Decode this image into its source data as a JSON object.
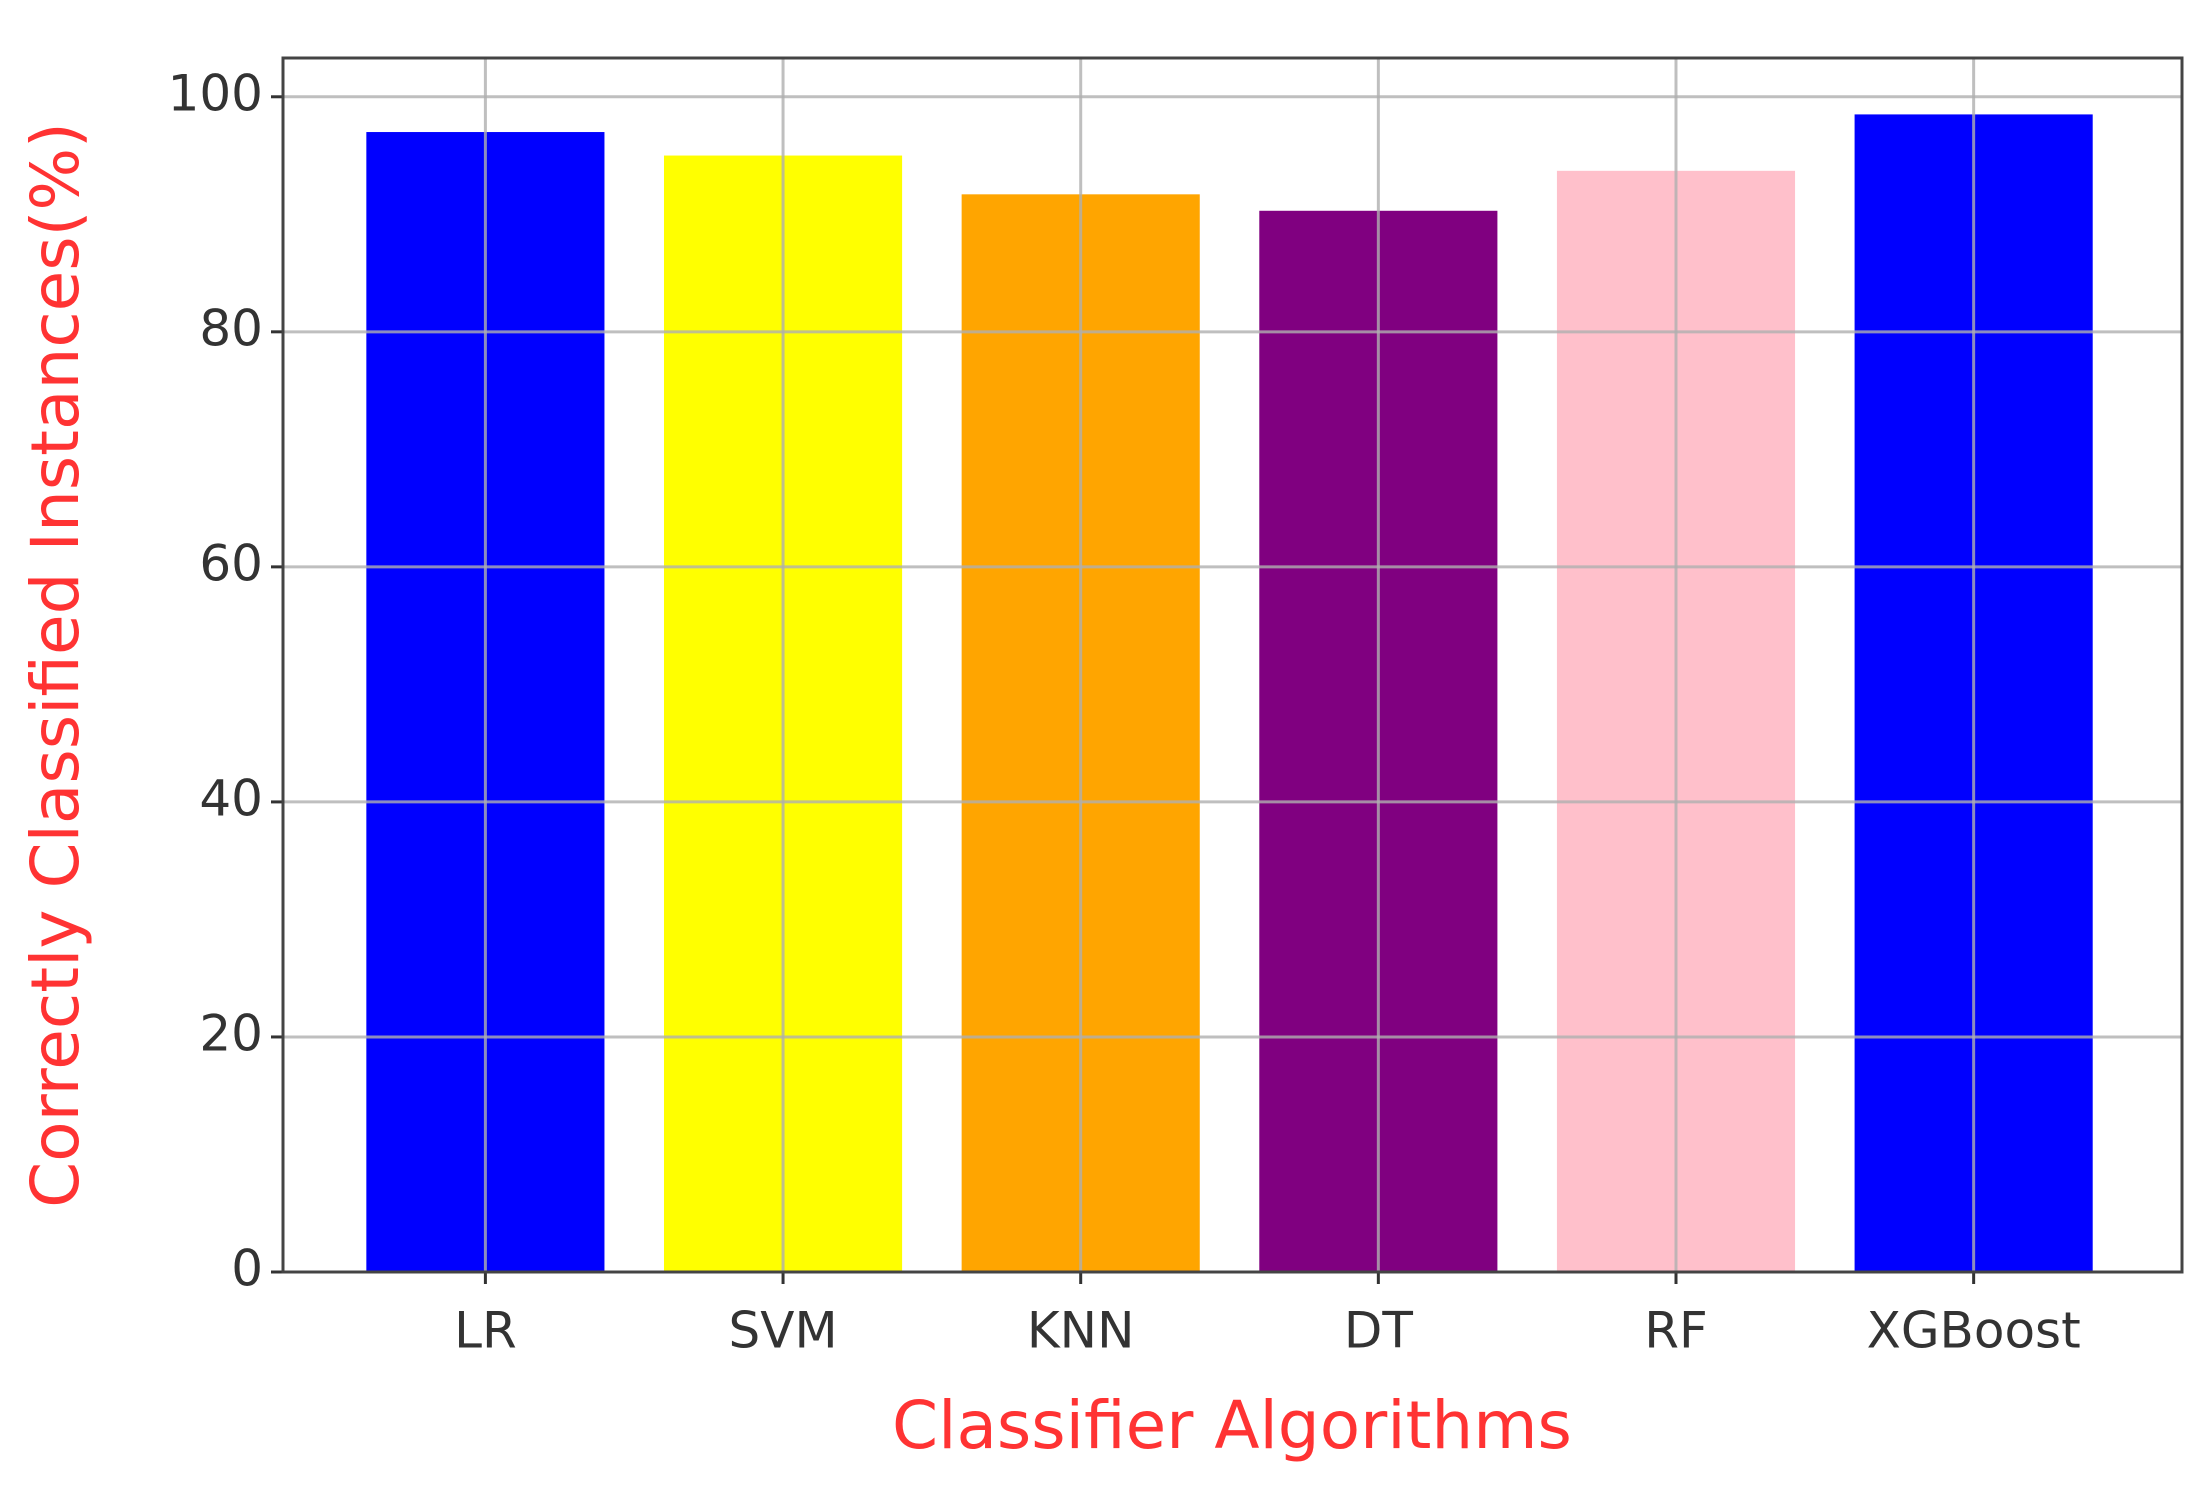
{
  "chart_data": {
    "type": "bar",
    "x_label": "Classifier Algorithms",
    "y_label": "Correctly Classified Instances(%)",
    "categories": [
      "LR",
      "SVM",
      "KNN",
      "DT",
      "RF",
      "XGBoost"
    ],
    "values": [
      97.0,
      95.0,
      91.7,
      90.3,
      93.7,
      98.5
    ],
    "colors": [
      "#0000ff",
      "#ffff00",
      "#ffa500",
      "#800080",
      "#ffc0cb",
      "#0000ff"
    ],
    "ylim": [
      0,
      103.3
    ],
    "yticks": [
      0,
      20,
      40,
      60,
      80,
      100
    ],
    "grid": true
  }
}
